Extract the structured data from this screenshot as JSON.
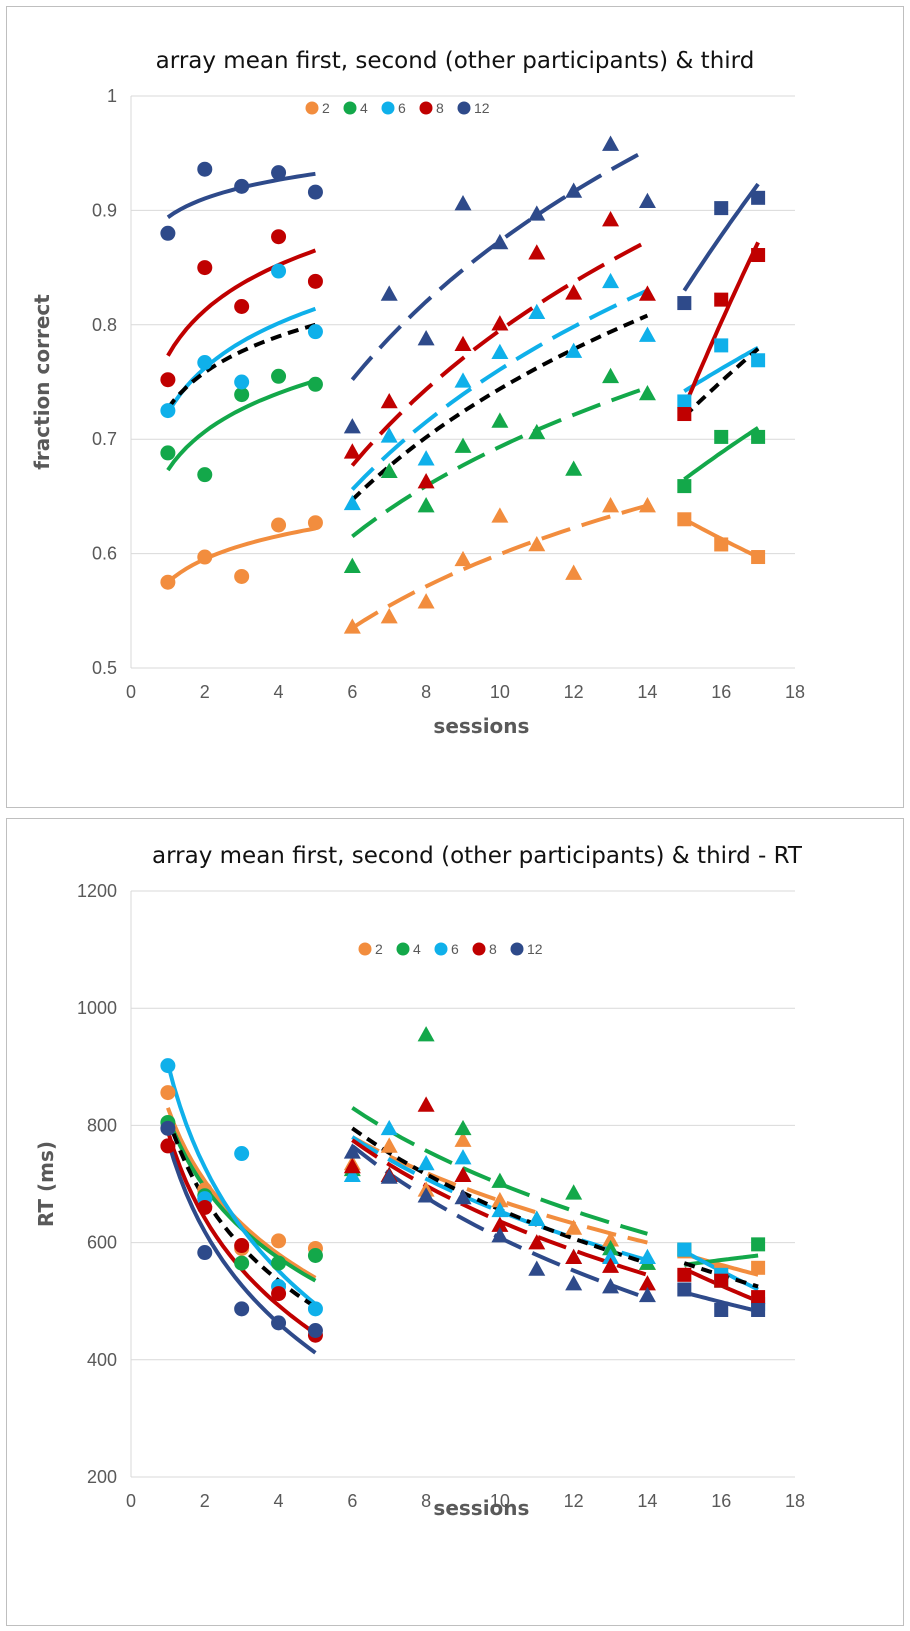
{
  "chart_data": [
    {
      "type": "scatter",
      "title": "array mean first, second (other participants) & third",
      "xlabel": "sessions",
      "ylabel": "fraction correct",
      "xlim": [
        0,
        18
      ],
      "ylim": [
        0.5,
        1
      ],
      "xticks": [
        "0",
        "2",
        "4",
        "6",
        "8",
        "10",
        "12",
        "14",
        "16",
        "18"
      ],
      "yticks": [
        "0.5",
        "0.6",
        "0.7",
        "0.8",
        "0.9",
        "1"
      ],
      "grid": "horizontal",
      "legend_position": "top-left",
      "colors": {
        "2": "#f28d3e",
        "4": "#13a84a",
        "6": "#0fb0ea",
        "8": "#c00000",
        "12": "#2e4a8a",
        "mean": "#000000"
      },
      "series": [
        {
          "name": "2",
          "color": "#f28d3e",
          "phase1": {
            "x": [
              1,
              2,
              3,
              4,
              5
            ],
            "y": [
              0.575,
              0.597,
              0.58,
              0.625,
              0.627
            ]
          },
          "phase2": {
            "x": [
              6,
              7,
              8,
              9,
              10,
              11,
              12,
              13,
              14
            ],
            "y": [
              0.536,
              0.545,
              0.558,
              0.595,
              0.633,
              0.608,
              0.583,
              0.642,
              0.642
            ]
          },
          "phase3": {
            "x": [
              15,
              16,
              17
            ],
            "y": [
              0.63,
              0.608,
              0.597
            ]
          }
        },
        {
          "name": "4",
          "color": "#13a84a",
          "phase1": {
            "x": [
              1,
              2,
              3,
              4,
              5
            ],
            "y": [
              0.688,
              0.669,
              0.739,
              0.755,
              0.748
            ]
          },
          "phase2": {
            "x": [
              6,
              7,
              8,
              9,
              10,
              11,
              12,
              13,
              14
            ],
            "y": [
              0.589,
              0.672,
              0.642,
              0.694,
              0.716,
              0.706,
              0.674,
              0.755,
              0.74
            ]
          },
          "phase3": {
            "x": [
              15,
              16,
              17
            ],
            "y": [
              0.659,
              0.702,
              0.702
            ]
          }
        },
        {
          "name": "6",
          "color": "#0fb0ea",
          "phase1": {
            "x": [
              1,
              2,
              3,
              4,
              5
            ],
            "y": [
              0.725,
              0.767,
              0.75,
              0.847,
              0.794
            ]
          },
          "phase2": {
            "x": [
              6,
              7,
              8,
              9,
              10,
              11,
              12,
              13,
              14
            ],
            "y": [
              0.644,
              0.703,
              0.683,
              0.751,
              0.776,
              0.811,
              0.777,
              0.838,
              0.791
            ]
          },
          "phase3": {
            "x": [
              15,
              16,
              17
            ],
            "y": [
              0.733,
              0.782,
              0.769
            ]
          }
        },
        {
          "name": "8",
          "color": "#c00000",
          "phase1": {
            "x": [
              1,
              2,
              3,
              4,
              5
            ],
            "y": [
              0.752,
              0.85,
              0.816,
              0.877,
              0.838
            ]
          },
          "phase2": {
            "x": [
              6,
              7,
              8,
              9,
              10,
              11,
              12,
              13,
              14
            ],
            "y": [
              0.689,
              0.733,
              0.663,
              0.783,
              0.801,
              0.863,
              0.828,
              0.892,
              0.827
            ]
          },
          "phase3": {
            "x": [
              15,
              16,
              17
            ],
            "y": [
              0.722,
              0.822,
              0.861
            ]
          }
        },
        {
          "name": "12",
          "color": "#2e4a8a",
          "phase1": {
            "x": [
              1,
              2,
              3,
              4,
              5
            ],
            "y": [
              0.88,
              0.936,
              0.921,
              0.933,
              0.916
            ]
          },
          "phase2": {
            "x": [
              6,
              7,
              8,
              9,
              10,
              11,
              12,
              13,
              14
            ],
            "y": [
              0.711,
              0.827,
              0.788,
              0.906,
              0.872,
              0.897,
              0.917,
              0.958,
              0.908
            ]
          },
          "phase3": {
            "x": [
              15,
              16,
              17
            ],
            "y": [
              0.819,
              0.902,
              0.911
            ]
          }
        }
      ],
      "trendlines": [
        {
          "series": "2",
          "phase1": [
            0.575,
            0.622
          ],
          "phase2": [
            0.535,
            0.642
          ],
          "phase3": [
            0.63,
            0.597
          ]
        },
        {
          "series": "4",
          "phase1": [
            0.673,
            0.751
          ],
          "phase2": [
            0.615,
            0.745
          ],
          "phase3": [
            0.665,
            0.71
          ]
        },
        {
          "series": "6",
          "phase1": [
            0.723,
            0.814
          ],
          "phase2": [
            0.656,
            0.83
          ],
          "phase3": [
            0.742,
            0.78
          ]
        },
        {
          "series": "8",
          "phase1": [
            0.773,
            0.865
          ],
          "phase2": [
            0.677,
            0.873
          ],
          "phase3": [
            0.728,
            0.872
          ]
        },
        {
          "series": "12",
          "phase1": [
            0.894,
            0.932
          ],
          "phase2": [
            0.752,
            0.953
          ],
          "phase3": [
            0.83,
            0.923
          ]
        },
        {
          "series": "mean",
          "phase1": [
            0.727,
            0.8
          ],
          "phase2": [
            0.647,
            0.808
          ],
          "phase3": [
            0.72,
            0.779
          ]
        }
      ]
    },
    {
      "type": "scatter",
      "title": "array mean first, second (other participants) & third - RT",
      "xlabel": "sessions",
      "ylabel": "RT (ms)",
      "xlim": [
        0,
        18
      ],
      "ylim": [
        200,
        1200
      ],
      "xticks": [
        "0",
        "2",
        "4",
        "6",
        "8",
        "10",
        "12",
        "14",
        "16",
        "18"
      ],
      "yticks": [
        "200",
        "400",
        "600",
        "800",
        "1000",
        "1200"
      ],
      "grid": "horizontal",
      "legend_position": "top-center",
      "series": [
        {
          "name": "2",
          "color": "#f28d3e",
          "phase1": {
            "x": [
              1,
              2,
              3,
              4,
              5
            ],
            "y": [
              856,
              690,
              590,
              603,
              590
            ]
          },
          "phase2": {
            "x": [
              6,
              7,
              8,
              9,
              10,
              11,
              12,
              13,
              14
            ],
            "y": [
              735,
              765,
              690,
              775,
              672,
              640,
              625,
              605,
              565
            ]
          },
          "phase3": {
            "x": [
              15,
              16,
              17
            ],
            "y": [
              585,
              550,
              557
            ]
          }
        },
        {
          "name": "4",
          "color": "#13a84a",
          "phase1": {
            "x": [
              1,
              2,
              3,
              4,
              5
            ],
            "y": [
              805,
              680,
              565,
              565,
              578
            ]
          },
          "phase2": {
            "x": [
              6,
              7,
              8,
              9,
              10,
              11,
              12,
              13,
              14
            ],
            "y": [
              725,
              715,
              955,
              795,
              705,
              640,
              685,
              590,
              565
            ]
          },
          "phase3": {
            "x": [
              15,
              16,
              17
            ],
            "y": [
              588,
              535,
              597
            ]
          }
        },
        {
          "name": "6",
          "color": "#0fb0ea",
          "phase1": {
            "x": [
              1,
              2,
              3,
              4,
              5
            ],
            "y": [
              902,
              675,
              752,
              525,
              487
            ]
          },
          "phase2": {
            "x": [
              6,
              7,
              8,
              9,
              10,
              11,
              12,
              13,
              14
            ],
            "y": [
              715,
              795,
              735,
              745,
              655,
              640,
              575,
              575,
              575
            ]
          },
          "phase3": {
            "x": [
              15,
              16,
              17
            ],
            "y": [
              588,
              545,
              495
            ]
          }
        },
        {
          "name": "8",
          "color": "#c00000",
          "phase1": {
            "x": [
              1,
              2,
              3,
              4,
              5
            ],
            "y": [
              765,
              660,
              595,
              513,
              442
            ]
          },
          "phase2": {
            "x": [
              6,
              7,
              8,
              9,
              10,
              11,
              12,
              13,
              14
            ],
            "y": [
              730,
              715,
              835,
              715,
              630,
              600,
              575,
              560,
              530
            ]
          },
          "phase3": {
            "x": [
              15,
              16,
              17
            ],
            "y": [
              545,
              535,
              507
            ]
          }
        },
        {
          "name": "12",
          "color": "#2e4a8a",
          "phase1": {
            "x": [
              1,
              2,
              3,
              4,
              5
            ],
            "y": [
              795,
              583,
              487,
              463,
              450
            ]
          },
          "phase2": {
            "x": [
              6,
              7,
              8,
              9,
              10,
              11,
              12,
              13,
              14
            ],
            "y": [
              755,
              712,
              680,
              677,
              612,
              555,
              530,
              525,
              510
            ]
          },
          "phase3": {
            "x": [
              15,
              16,
              17
            ],
            "y": [
              520,
              485,
              485
            ]
          }
        }
      ],
      "trendlines": [
        {
          "series": "2",
          "phase1": [
            830,
            540
          ],
          "phase2": [
            780,
            600
          ],
          "phase3": [
            580,
            545
          ]
        },
        {
          "series": "4",
          "phase1": [
            815,
            535
          ],
          "phase2": [
            830,
            615
          ],
          "phase3": [
            562,
            578
          ]
        },
        {
          "series": "6",
          "phase1": [
            905,
            495
          ],
          "phase2": [
            780,
            570
          ],
          "phase3": [
            585,
            520
          ]
        },
        {
          "series": "8",
          "phase1": [
            790,
            445
          ],
          "phase2": [
            775,
            545
          ],
          "phase3": [
            555,
            500
          ]
        },
        {
          "series": "12",
          "phase1": [
            775,
            412
          ],
          "phase2": [
            765,
            505
          ],
          "phase3": [
            515,
            483
          ]
        },
        {
          "series": "mean",
          "phase1": [
            815,
            490
          ],
          "phase2": [
            795,
            565
          ],
          "phase3": [
            565,
            525
          ]
        }
      ]
    }
  ]
}
